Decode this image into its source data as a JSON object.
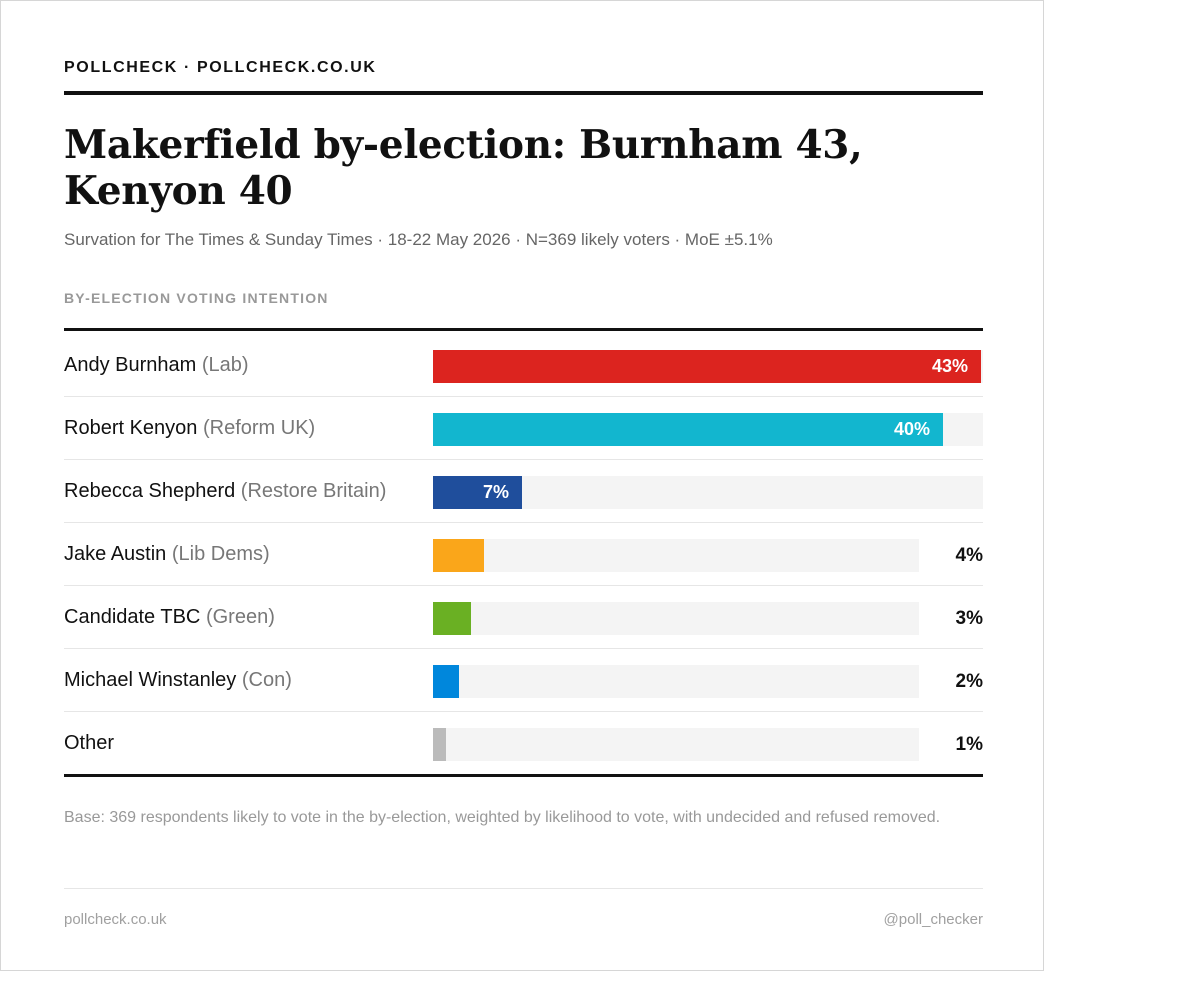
{
  "header": {
    "brand": "POLLCHECK · POLLCHECK.CO.UK"
  },
  "title": "Makerfield by-election: Burnham 43, Kenyon 40",
  "subtitle": "Survation for The Times & Sunday Times · 18-22 May 2026 · N=369 likely voters · MoE ±5.1%",
  "section_label": "BY-ELECTION VOTING INTENTION",
  "chart_data": {
    "type": "bar",
    "orientation": "horizontal",
    "title": "BY-ELECTION VOTING INTENTION",
    "categories": [
      "Andy Burnham (Lab)",
      "Robert Kenyon (Reform UK)",
      "Rebecca Shepherd (Restore Britain)",
      "Jake Austin (Lib Dems)",
      "Candidate TBC (Green)",
      "Michael Winstanley (Con)",
      "Other"
    ],
    "values": [
      43,
      40,
      7,
      4,
      3,
      2,
      1
    ],
    "unit": "%",
    "xlim": [
      0,
      44
    ],
    "grid": false,
    "rows": [
      {
        "name": "Andy Burnham",
        "party": "(Lab)",
        "value": 43,
        "label": "43%",
        "color": "#dc241f"
      },
      {
        "name": "Robert Kenyon",
        "party": "(Reform UK)",
        "value": 40,
        "label": "40%",
        "color": "#12b6cf"
      },
      {
        "name": "Rebecca Shepherd",
        "party": "(Restore Britain)",
        "value": 7,
        "label": "7%",
        "color": "#1f4e9c"
      },
      {
        "name": "Jake Austin",
        "party": "(Lib Dems)",
        "value": 4,
        "label": "4%",
        "color": "#faa61a"
      },
      {
        "name": "Candidate TBC",
        "party": "(Green)",
        "value": 3,
        "label": "3%",
        "color": "#6ab023"
      },
      {
        "name": "Michael Winstanley",
        "party": "(Con)",
        "value": 2,
        "label": "2%",
        "color": "#0087dc"
      },
      {
        "name": "Other",
        "party": "",
        "value": 1,
        "label": "1%",
        "color": "#bbbbbb"
      }
    ]
  },
  "note": "Base: 369 respondents likely to vote in the by-election, weighted by likelihood to vote, with undecided and refused removed.",
  "footer": {
    "left": "pollcheck.co.uk",
    "right": "@poll_checker"
  }
}
